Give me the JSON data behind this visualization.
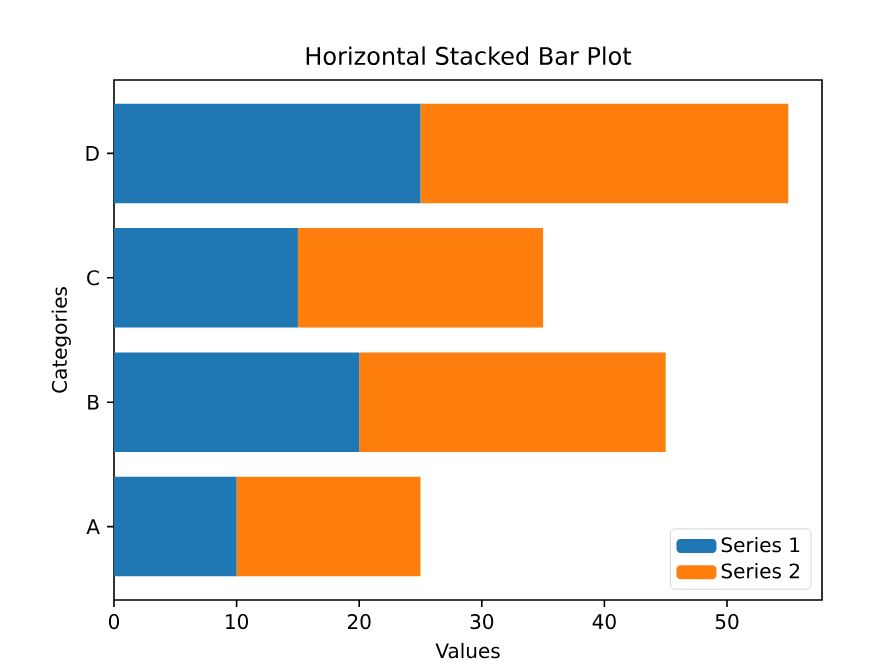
{
  "chart_data": {
    "type": "bar",
    "orientation": "horizontal",
    "stacked": true,
    "title": "Horizontal Stacked Bar Plot",
    "xlabel": "Values",
    "ylabel": "Categories",
    "categories": [
      "D",
      "C",
      "B",
      "A"
    ],
    "series": [
      {
        "name": "Series 1",
        "color": "#1f77b4",
        "values": [
          25,
          15,
          20,
          10
        ]
      },
      {
        "name": "Series 2",
        "color": "#ff7f0e",
        "values": [
          30,
          20,
          25,
          15
        ]
      }
    ],
    "xlim": [
      0,
      57.75
    ],
    "xticks": [
      0,
      10,
      20,
      30,
      40,
      50
    ],
    "legend": "bottom right"
  }
}
